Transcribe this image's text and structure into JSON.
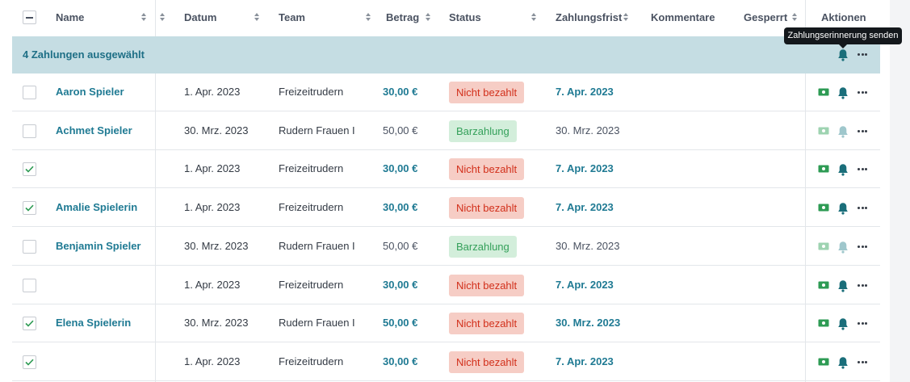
{
  "header": {
    "name": "Name",
    "datum": "Datum",
    "team": "Team",
    "betrag": "Betrag",
    "status": "Status",
    "zahlungsfrist": "Zahlungsfrist",
    "kommentare": "Kommentare",
    "gesperrt": "Gesperrt",
    "aktionen": "Aktionen"
  },
  "selection": {
    "text": "4 Zahlungen ausgewählt"
  },
  "tooltip": {
    "text": "Zahlungserinnerung senden"
  },
  "colors": {
    "accent": "#1f7a93",
    "unpaid_bg": "#f6cdc5",
    "unpaid_text": "#d2301b",
    "cash_bg": "#d3eedb",
    "cash_text": "#34a05a",
    "selection_bg": "#c5dde3"
  },
  "icons": {
    "payment": "cash-icon",
    "reminder": "bell-icon",
    "more": "more-dots-icon",
    "select_all": "minus-checkbox-icon"
  },
  "rows": [
    {
      "checked": false,
      "name": "Aaron Spieler",
      "datum": "1. Apr. 2023",
      "team": "Freizeitrudern",
      "betrag": "30,00 €",
      "status": "Nicht bezahlt",
      "status_type": "unpaid",
      "frist": "7. Apr. 2023"
    },
    {
      "checked": false,
      "name": "Achmet Spieler",
      "datum": "30. Mrz. 2023",
      "team": "Rudern Frauen I",
      "betrag": "50,00 €",
      "status": "Barzahlung",
      "status_type": "cash",
      "frist": "30. Mrz. 2023"
    },
    {
      "checked": true,
      "name": "",
      "datum": "1. Apr. 2023",
      "team": "Freizeitrudern",
      "betrag": "30,00 €",
      "status": "Nicht bezahlt",
      "status_type": "unpaid",
      "frist": "7. Apr. 2023"
    },
    {
      "checked": true,
      "name": "Amalie Spielerin",
      "datum": "1. Apr. 2023",
      "team": "Freizeitrudern",
      "betrag": "30,00 €",
      "status": "Nicht bezahlt",
      "status_type": "unpaid",
      "frist": "7. Apr. 2023"
    },
    {
      "checked": false,
      "name": "Benjamin Spieler",
      "datum": "30. Mrz. 2023",
      "team": "Rudern Frauen I",
      "betrag": "50,00 €",
      "status": "Barzahlung",
      "status_type": "cash",
      "frist": "30. Mrz. 2023"
    },
    {
      "checked": false,
      "name": "",
      "datum": "1. Apr. 2023",
      "team": "Freizeitrudern",
      "betrag": "30,00 €",
      "status": "Nicht bezahlt",
      "status_type": "unpaid",
      "frist": "7. Apr. 2023"
    },
    {
      "checked": true,
      "name": "Elena Spielerin",
      "datum": "30. Mrz. 2023",
      "team": "Rudern Frauen I",
      "betrag": "50,00 €",
      "status": "Nicht bezahlt",
      "status_type": "unpaid",
      "frist": "30. Mrz. 2023"
    },
    {
      "checked": true,
      "name": "",
      "datum": "1. Apr. 2023",
      "team": "Freizeitrudern",
      "betrag": "30,00 €",
      "status": "Nicht bezahlt",
      "status_type": "unpaid",
      "frist": "7. Apr. 2023"
    }
  ]
}
